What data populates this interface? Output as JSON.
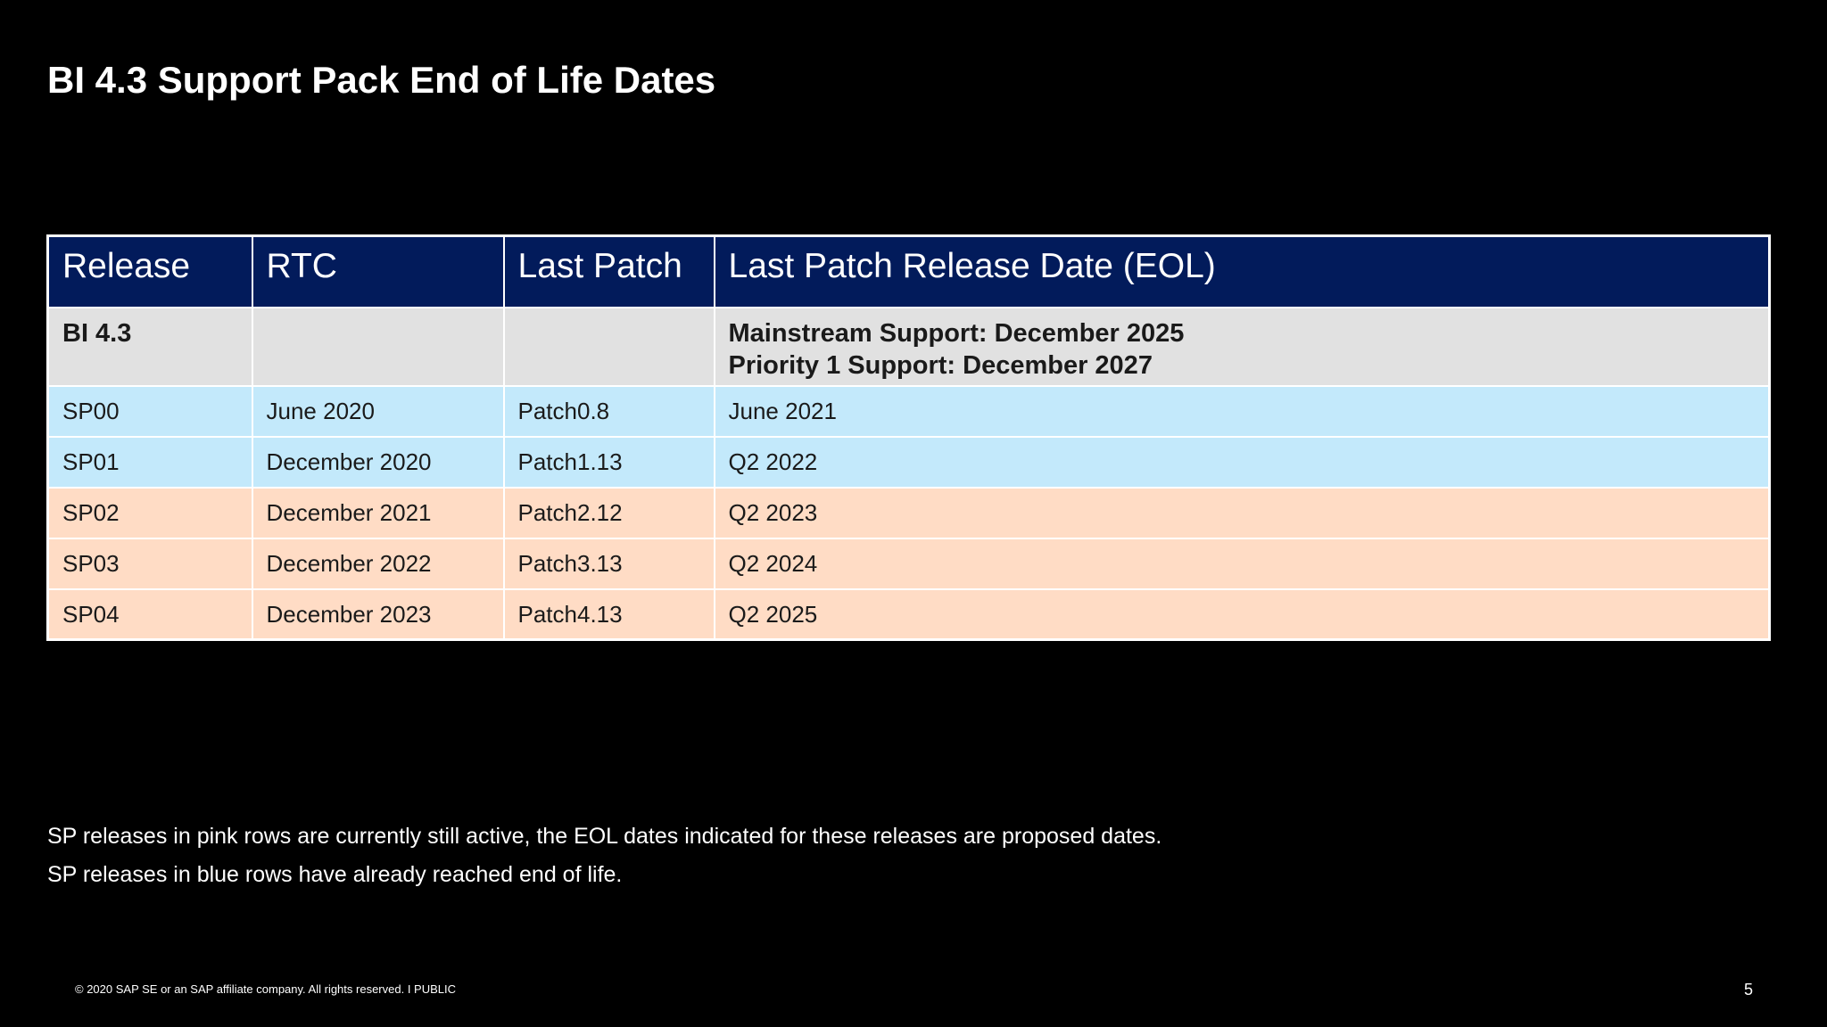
{
  "title": "BI 4.3 Support Pack End of Life Dates",
  "table": {
    "headers": [
      "Release",
      "RTC",
      "Last Patch",
      "Last Patch Release Date (EOL)"
    ],
    "summary": {
      "release": "BI 4.3",
      "rtc": "",
      "last_patch": "",
      "mainstream_support": "Mainstream Support: December 2025",
      "priority_support": "Priority 1 Support: December 2027"
    },
    "rows": [
      {
        "release": "SP00",
        "rtc": "June 2020",
        "last_patch": "Patch0.8",
        "eol": "June 2021",
        "status": "blue"
      },
      {
        "release": "SP01",
        "rtc": "December 2020",
        "last_patch": "Patch1.13",
        "eol": "Q2 2022",
        "status": "blue"
      },
      {
        "release": "SP02",
        "rtc": "December 2021",
        "last_patch": "Patch2.12",
        "eol": "Q2 2023",
        "status": "pink"
      },
      {
        "release": "SP03",
        "rtc": "December 2022",
        "last_patch": "Patch3.13",
        "eol": "Q2 2024",
        "status": "pink"
      },
      {
        "release": "SP04",
        "rtc": "December 2023",
        "last_patch": "Patch4.13",
        "eol": "Q2 2025",
        "status": "pink"
      }
    ]
  },
  "notes": [
    "SP releases in pink rows are currently still active, the EOL dates indicated for these releases are proposed dates.",
    "SP releases in blue rows have already reached end of life."
  ],
  "footer": {
    "copyright": "© 2020 SAP SE or an SAP affiliate company. All rights reserved.   I   PUBLIC",
    "page_number": "5"
  },
  "colors": {
    "background": "#000000",
    "header_fill": "#021b5b",
    "summary_fill": "#e1e1e1",
    "blue_row_fill": "#c3e9fb",
    "pink_row_fill": "#ffdcc5"
  }
}
